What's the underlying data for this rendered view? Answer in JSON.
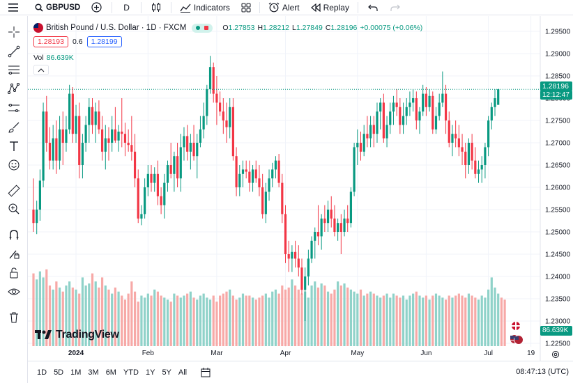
{
  "toolbar": {
    "symbol": "GBPUSD",
    "interval": "D",
    "indicators_label": "Indicators",
    "alert_label": "Alert",
    "replay_label": "Replay"
  },
  "legend": {
    "title": "British Pound / U.S. Dollar · 1D · FXCM",
    "open": "1.27853",
    "high": "1.28212",
    "low": "1.27849",
    "close": "1.28196",
    "change": "+0.00075 (+0.06%)",
    "bid": "1.28193",
    "spread": "0.6",
    "ask": "1.28199",
    "volume_label": "Vol",
    "volume_value": "86.639K"
  },
  "price_axis": {
    "last_price": "1.28196",
    "countdown": "12:12:47",
    "volume_badge": "86.639K"
  },
  "watermark": "TradingView",
  "bottom": {
    "ranges": [
      "1D",
      "5D",
      "1M",
      "3M",
      "6M",
      "YTD",
      "1Y",
      "5Y",
      "All"
    ],
    "clock": "08:47:13 (UTC)"
  },
  "colors": {
    "up": "#089981",
    "down": "#f23645",
    "up_volume": "#8fd2c9",
    "down_volume": "#f7a9a7"
  },
  "chart_data": {
    "type": "candlestick",
    "ylim": [
      1.225,
      1.2975
    ],
    "y_ticks": [
      "1.29500",
      "1.29000",
      "1.28500",
      "1.28000",
      "1.27500",
      "1.27000",
      "1.26500",
      "1.26000",
      "1.25500",
      "1.25000",
      "1.24500",
      "1.24000",
      "1.23500",
      "1.23000",
      "1.22500"
    ],
    "x_ticks": [
      {
        "label": "2024",
        "index": 13
      },
      {
        "label": "Feb",
        "index": 35
      },
      {
        "label": "Mar",
        "index": 56
      },
      {
        "label": "Apr",
        "index": 77
      },
      {
        "label": "May",
        "index": 99
      },
      {
        "label": "Jun",
        "index": 120
      },
      {
        "label": "Jul",
        "index": 139
      },
      {
        "label": "19",
        "index": 152
      }
    ],
    "candles": [
      [
        1.255,
        1.262,
        1.25,
        1.252
      ],
      [
        1.252,
        1.257,
        1.2495,
        1.255
      ],
      [
        1.255,
        1.264,
        1.2525,
        1.2615
      ],
      [
        1.2615,
        1.279,
        1.26,
        1.277
      ],
      [
        1.277,
        1.2805,
        1.268,
        1.27
      ],
      [
        1.27,
        1.2735,
        1.264,
        1.266
      ],
      [
        1.266,
        1.274,
        1.264,
        1.271
      ],
      [
        1.271,
        1.275,
        1.263,
        1.266
      ],
      [
        1.266,
        1.276,
        1.264,
        1.273
      ],
      [
        1.273,
        1.277,
        1.265,
        1.27
      ],
      [
        1.27,
        1.276,
        1.268,
        1.273
      ],
      [
        1.273,
        1.283,
        1.272,
        1.281
      ],
      [
        1.281,
        1.2825,
        1.27,
        1.272
      ],
      [
        1.272,
        1.2785,
        1.27,
        1.276
      ],
      [
        1.276,
        1.279,
        1.262,
        1.265
      ],
      [
        1.265,
        1.272,
        1.262,
        1.27
      ],
      [
        1.27,
        1.276,
        1.268,
        1.274
      ],
      [
        1.274,
        1.28,
        1.27,
        1.278
      ],
      [
        1.278,
        1.28,
        1.272,
        1.274
      ],
      [
        1.274,
        1.279,
        1.27,
        1.277
      ],
      [
        1.277,
        1.2795,
        1.272,
        1.273
      ],
      [
        1.273,
        1.276,
        1.266,
        1.268
      ],
      [
        1.268,
        1.274,
        1.264,
        1.271
      ],
      [
        1.271,
        1.2735,
        1.266,
        1.27
      ],
      [
        1.27,
        1.276,
        1.268,
        1.273
      ],
      [
        1.273,
        1.278,
        1.27,
        1.2705
      ],
      [
        1.2705,
        1.274,
        1.268,
        1.2725
      ],
      [
        1.2725,
        1.28,
        1.269,
        1.272
      ],
      [
        1.272,
        1.2745,
        1.267,
        1.27
      ],
      [
        1.27,
        1.273,
        1.268,
        1.2695
      ],
      [
        1.2695,
        1.276,
        1.266,
        1.268
      ],
      [
        1.268,
        1.272,
        1.26,
        1.262
      ],
      [
        1.262,
        1.264,
        1.252,
        1.253
      ],
      [
        1.253,
        1.256,
        1.2515,
        1.254
      ],
      [
        1.254,
        1.262,
        1.253,
        1.26
      ],
      [
        1.26,
        1.265,
        1.258,
        1.263
      ],
      [
        1.263,
        1.265,
        1.259,
        1.261
      ],
      [
        1.261,
        1.2645,
        1.259,
        1.263
      ],
      [
        1.263,
        1.266,
        1.256,
        1.258
      ],
      [
        1.258,
        1.26,
        1.254,
        1.256
      ],
      [
        1.256,
        1.263,
        1.253,
        1.261
      ],
      [
        1.261,
        1.266,
        1.259,
        1.265
      ],
      [
        1.265,
        1.27,
        1.262,
        1.263
      ],
      [
        1.263,
        1.268,
        1.259,
        1.267
      ],
      [
        1.267,
        1.27,
        1.26,
        1.262
      ],
      [
        1.262,
        1.272,
        1.259,
        1.269
      ],
      [
        1.269,
        1.2735,
        1.266,
        1.2715
      ],
      [
        1.2715,
        1.274,
        1.266,
        1.268
      ],
      [
        1.268,
        1.272,
        1.264,
        1.27
      ],
      [
        1.27,
        1.274,
        1.266,
        1.267
      ],
      [
        1.267,
        1.272,
        1.262,
        1.27
      ],
      [
        1.27,
        1.276,
        1.269,
        1.273
      ],
      [
        1.273,
        1.279,
        1.271,
        1.276
      ],
      [
        1.276,
        1.283,
        1.274,
        1.282
      ],
      [
        1.282,
        1.2895,
        1.281,
        1.287
      ],
      [
        1.287,
        1.288,
        1.279,
        1.281
      ],
      [
        1.281,
        1.285,
        1.274,
        1.279
      ],
      [
        1.279,
        1.2815,
        1.276,
        1.277
      ],
      [
        1.277,
        1.28,
        1.272,
        1.275
      ],
      [
        1.275,
        1.279,
        1.27,
        1.2735
      ],
      [
        1.2735,
        1.28,
        1.271,
        1.278
      ],
      [
        1.278,
        1.28,
        1.266,
        1.267
      ],
      [
        1.267,
        1.269,
        1.258,
        1.26
      ],
      [
        1.26,
        1.265,
        1.258,
        1.263
      ],
      [
        1.263,
        1.266,
        1.26,
        1.264
      ],
      [
        1.264,
        1.266,
        1.262,
        1.2635
      ],
      [
        1.2635,
        1.266,
        1.259,
        1.261
      ],
      [
        1.261,
        1.265,
        1.259,
        1.264
      ],
      [
        1.264,
        1.266,
        1.261,
        1.262
      ],
      [
        1.262,
        1.265,
        1.258,
        1.26
      ],
      [
        1.26,
        1.263,
        1.253,
        1.254
      ],
      [
        1.254,
        1.261,
        1.252,
        1.259
      ],
      [
        1.259,
        1.264,
        1.257,
        1.262
      ],
      [
        1.262,
        1.2655,
        1.26,
        1.264
      ],
      [
        1.264,
        1.267,
        1.262,
        1.266
      ],
      [
        1.266,
        1.2675,
        1.26,
        1.261
      ],
      [
        1.261,
        1.263,
        1.252,
        1.254
      ],
      [
        1.254,
        1.256,
        1.243,
        1.245
      ],
      [
        1.245,
        1.248,
        1.241,
        1.244
      ],
      [
        1.244,
        1.247,
        1.241,
        1.2455
      ],
      [
        1.2455,
        1.248,
        1.242,
        1.244
      ],
      [
        1.244,
        1.247,
        1.24,
        1.242
      ],
      [
        1.242,
        1.244,
        1.236,
        1.237
      ],
      [
        1.237,
        1.242,
        1.23,
        1.24
      ],
      [
        1.24,
        1.246,
        1.238,
        1.244
      ],
      [
        1.244,
        1.249,
        1.243,
        1.248
      ],
      [
        1.248,
        1.251,
        1.244,
        1.25
      ],
      [
        1.25,
        1.256,
        1.247,
        1.249
      ],
      [
        1.249,
        1.254,
        1.246,
        1.253
      ],
      [
        1.253,
        1.256,
        1.25,
        1.252
      ],
      [
        1.252,
        1.257,
        1.25,
        1.255
      ],
      [
        1.255,
        1.258,
        1.251,
        1.253
      ],
      [
        1.253,
        1.256,
        1.249,
        1.25
      ],
      [
        1.25,
        1.253,
        1.248,
        1.252
      ],
      [
        1.252,
        1.254,
        1.245,
        1.25
      ],
      [
        1.25,
        1.255,
        1.249,
        1.253
      ],
      [
        1.253,
        1.256,
        1.25,
        1.252
      ],
      [
        1.252,
        1.26,
        1.251,
        1.259
      ],
      [
        1.259,
        1.27,
        1.258,
        1.269
      ],
      [
        1.269,
        1.273,
        1.265,
        1.27
      ],
      [
        1.27,
        1.2725,
        1.266,
        1.268
      ],
      [
        1.268,
        1.274,
        1.267,
        1.272
      ],
      [
        1.272,
        1.276,
        1.269,
        1.271
      ],
      [
        1.271,
        1.276,
        1.269,
        1.274
      ],
      [
        1.274,
        1.276,
        1.269,
        1.272
      ],
      [
        1.272,
        1.279,
        1.27,
        1.277
      ],
      [
        1.277,
        1.28,
        1.273,
        1.279
      ],
      [
        1.279,
        1.281,
        1.27,
        1.271
      ],
      [
        1.271,
        1.276,
        1.269,
        1.274
      ],
      [
        1.274,
        1.279,
        1.272,
        1.277
      ],
      [
        1.277,
        1.2805,
        1.274,
        1.279
      ],
      [
        1.279,
        1.282,
        1.276,
        1.278
      ],
      [
        1.278,
        1.28,
        1.272,
        1.274
      ],
      [
        1.274,
        1.279,
        1.272,
        1.276
      ],
      [
        1.276,
        1.28,
        1.274,
        1.278
      ],
      [
        1.278,
        1.2815,
        1.276,
        1.279
      ],
      [
        1.279,
        1.282,
        1.277,
        1.28
      ],
      [
        1.28,
        1.2815,
        1.273,
        1.275
      ],
      [
        1.275,
        1.278,
        1.272,
        1.277
      ],
      [
        1.277,
        1.283,
        1.276,
        1.281
      ],
      [
        1.281,
        1.2825,
        1.276,
        1.278
      ],
      [
        1.278,
        1.282,
        1.277,
        1.2805
      ],
      [
        1.2805,
        1.2815,
        1.272,
        1.273
      ],
      [
        1.273,
        1.278,
        1.272,
        1.276
      ],
      [
        1.276,
        1.281,
        1.275,
        1.279
      ],
      [
        1.279,
        1.286,
        1.278,
        1.281
      ],
      [
        1.281,
        1.283,
        1.272,
        1.275
      ],
      [
        1.275,
        1.277,
        1.269,
        1.27
      ],
      [
        1.27,
        1.274,
        1.267,
        1.272
      ],
      [
        1.272,
        1.275,
        1.269,
        1.271
      ],
      [
        1.271,
        1.274,
        1.267,
        1.269
      ],
      [
        1.269,
        1.272,
        1.265,
        1.268
      ],
      [
        1.268,
        1.27,
        1.262,
        1.265
      ],
      [
        1.265,
        1.271,
        1.263,
        1.27
      ],
      [
        1.27,
        1.272,
        1.264,
        1.266
      ],
      [
        1.266,
        1.269,
        1.262,
        1.263
      ],
      [
        1.263,
        1.266,
        1.261,
        1.264
      ],
      [
        1.264,
        1.267,
        1.261,
        1.265
      ],
      [
        1.265,
        1.27,
        1.262,
        1.269
      ],
      [
        1.269,
        1.276,
        1.267,
        1.275
      ],
      [
        1.275,
        1.279,
        1.273,
        1.278
      ],
      [
        1.278,
        1.282,
        1.276,
        1.28
      ],
      [
        1.2785,
        1.2821,
        1.2785,
        1.282
      ]
    ],
    "volumes": [
      360,
      330,
      370,
      340,
      380,
      300,
      280,
      320,
      290,
      270,
      300,
      320,
      290,
      280,
      260,
      340,
      300,
      310,
      360,
      320,
      290,
      340,
      300,
      280,
      260,
      290,
      270,
      250,
      230,
      260,
      320,
      270,
      220,
      250,
      240,
      260,
      250,
      280,
      270,
      250,
      240,
      230,
      220,
      260,
      250,
      240,
      250,
      260,
      270,
      240,
      230,
      250,
      260,
      240,
      230,
      250,
      220,
      250,
      260,
      270,
      280,
      250,
      230,
      240,
      260,
      250,
      250,
      240,
      230,
      240,
      250,
      260,
      240,
      270,
      280,
      260,
      300,
      280,
      290,
      330,
      300,
      280,
      260,
      270,
      240,
      300,
      320,
      290,
      310,
      300,
      270,
      260,
      280,
      320,
      300,
      310,
      290,
      280,
      270,
      260,
      280,
      250,
      260,
      270,
      260,
      250,
      240,
      250,
      260,
      240,
      260,
      250,
      240,
      250,
      230,
      250,
      260,
      270,
      250,
      240,
      250,
      230,
      250,
      260,
      250,
      240,
      230,
      250,
      240,
      250,
      260,
      250,
      240,
      260,
      250,
      240,
      230,
      250,
      240,
      280,
      340,
      290,
      260,
      240,
      230
    ]
  }
}
